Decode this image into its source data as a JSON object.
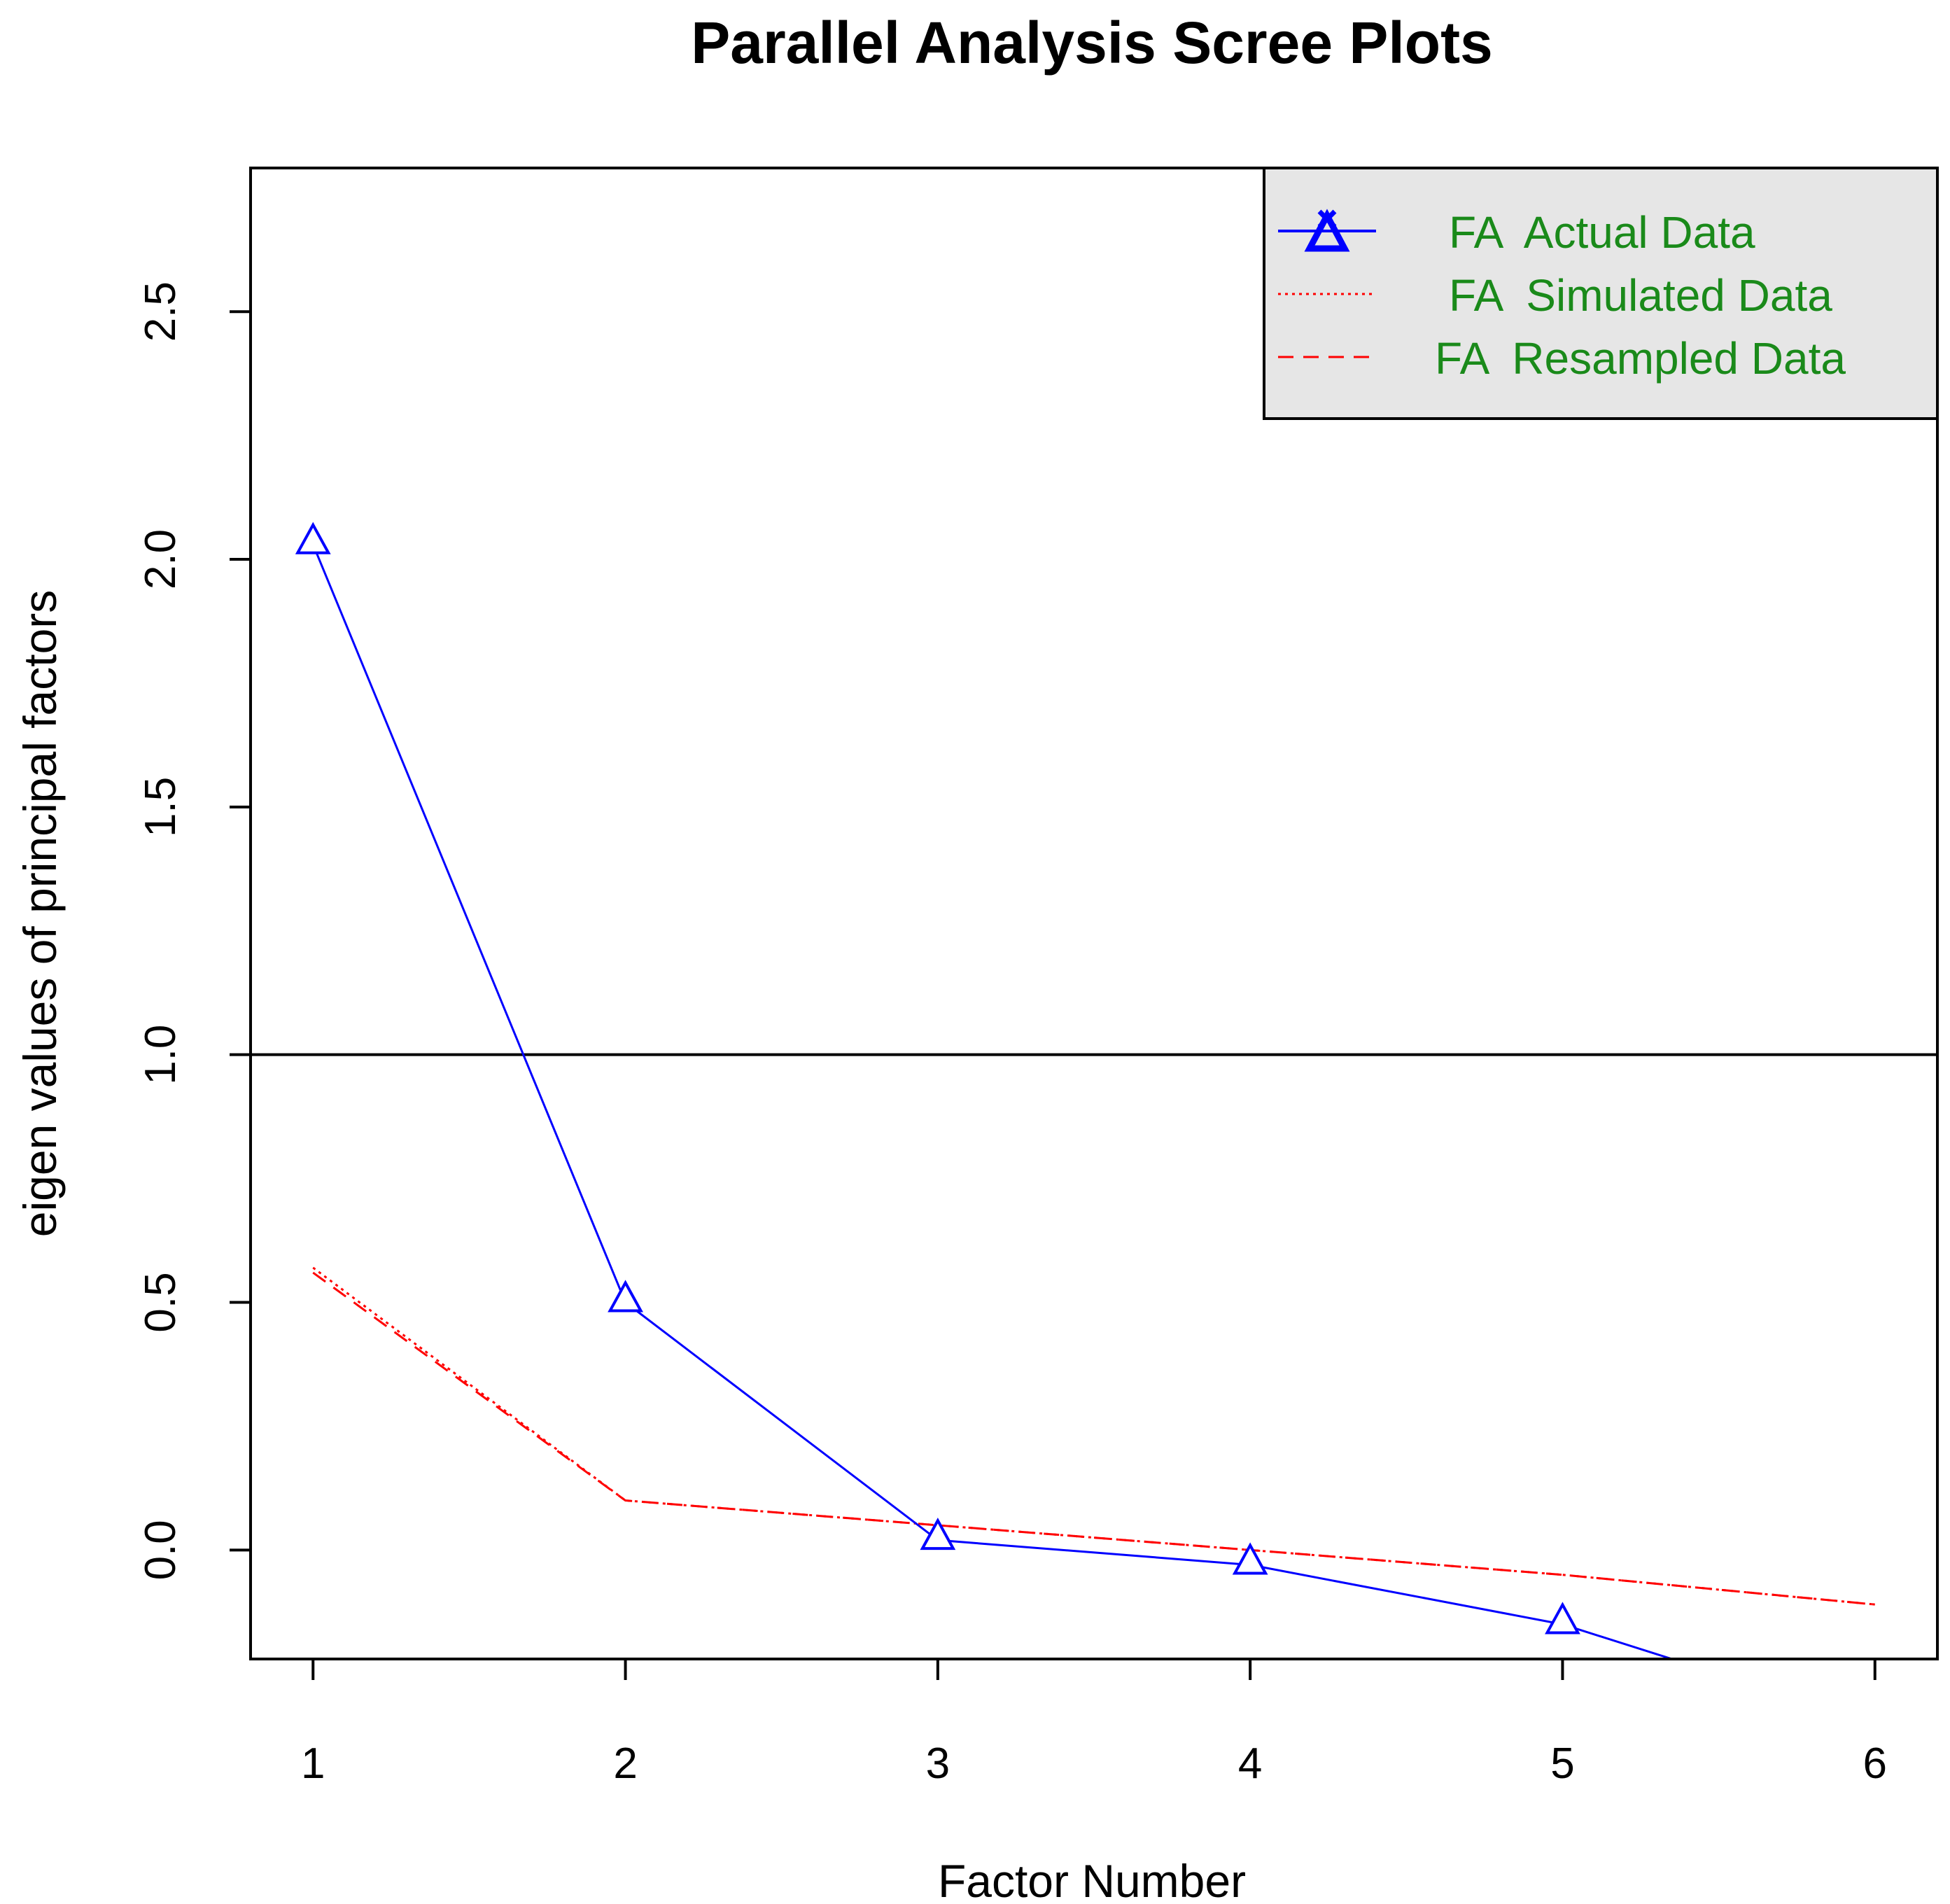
{
  "chart_data": {
    "type": "line",
    "title": "Parallel Analysis Scree Plots",
    "xlabel": "Factor Number",
    "ylabel": "eigen values of principal factors",
    "xlim": [
      0.8,
      6.2
    ],
    "ylim": [
      -0.22,
      2.79
    ],
    "x_ticks": [
      1,
      2,
      3,
      4,
      5,
      6
    ],
    "y_ticks": [
      0.0,
      0.5,
      1.0,
      1.5,
      2.0,
      2.5
    ],
    "x_tick_labels": [
      "1",
      "2",
      "3",
      "4",
      "5",
      "6"
    ],
    "y_tick_labels": [
      "0.0",
      "0.5",
      "1.0",
      "1.5",
      "2.0",
      "2.5"
    ],
    "reference_line_y": 1.0,
    "grid": false,
    "legend_position": "top-right",
    "series": [
      {
        "name": "FA  Actual Data",
        "color": "#0000ff",
        "line_style": "solid",
        "marker": "triangle",
        "x": [
          1,
          2,
          3,
          4,
          5,
          6
        ],
        "values": [
          2.03,
          0.5,
          0.02,
          -0.03,
          -0.15,
          -0.35
        ]
      },
      {
        "name": "FA  Simulated Data",
        "color": "#ff0000",
        "line_style": "dotted",
        "marker": "none",
        "x": [
          1,
          2,
          3,
          4,
          5,
          6
        ],
        "values": [
          0.57,
          0.1,
          0.05,
          0.0,
          -0.05,
          -0.11
        ]
      },
      {
        "name": "FA  Resampled Data",
        "color": "#ff0000",
        "line_style": "dashed",
        "marker": "none",
        "x": [
          1,
          2,
          3,
          4,
          5,
          6
        ],
        "values": [
          0.56,
          0.1,
          0.05,
          0.0,
          -0.05,
          -0.11
        ]
      }
    ]
  },
  "legend": {
    "background": "#e6e6e6",
    "text_color": "#1a8a1a",
    "entries": [
      "FA  Actual Data",
      "FA  Simulated Data",
      "FA  Resampled Data"
    ]
  }
}
